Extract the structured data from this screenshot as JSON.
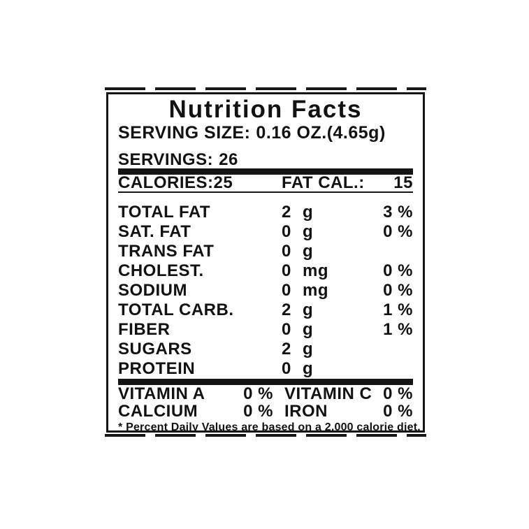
{
  "label": {
    "title": "Nutrition Facts",
    "serving_size": {
      "label": "SERVING SIZE:",
      "value": "0.16 OZ.(4.65g)"
    },
    "servings": {
      "label": "SERVINGS:",
      "value": "26"
    },
    "calories": {
      "label": "CALORIES:25"
    },
    "fat_cal": {
      "label": "FAT CAL.:",
      "value": "15"
    },
    "nutrients": [
      {
        "name": "TOTAL FAT",
        "amount": "2",
        "unit": "g",
        "dv": "3 %"
      },
      {
        "name": "SAT. FAT",
        "amount": "0",
        "unit": "g",
        "dv": "0 %"
      },
      {
        "name": "TRANS FAT",
        "amount": "0",
        "unit": "g",
        "dv": ""
      },
      {
        "name": "CHOLEST.",
        "amount": "0",
        "unit": "mg",
        "dv": "0 %"
      },
      {
        "name": "SODIUM",
        "amount": "0",
        "unit": "mg",
        "dv": "0 %"
      },
      {
        "name": "TOTAL CARB.",
        "amount": "2",
        "unit": "g",
        "dv": "1 %"
      },
      {
        "name": "FIBER",
        "amount": "0",
        "unit": "g",
        "dv": "1 %"
      },
      {
        "name": "SUGARS",
        "amount": "2",
        "unit": "g",
        "dv": ""
      },
      {
        "name": "PROTEIN",
        "amount": "0",
        "unit": "g",
        "dv": ""
      }
    ],
    "micronutrients": [
      {
        "name_left": "VITAMIN A",
        "value_left": "0 %",
        "name_right": "VITAMIN C",
        "value_right": "0 %"
      },
      {
        "name_left": "CALCIUM",
        "value_left": "0 %",
        "name_right": "IRON",
        "value_right": "0 %"
      }
    ],
    "footnote": "* Percent Daily Values are based on a 2,000 calorie diet.",
    "colors": {
      "ink": "#151515",
      "paper": "#ffffff"
    }
  }
}
